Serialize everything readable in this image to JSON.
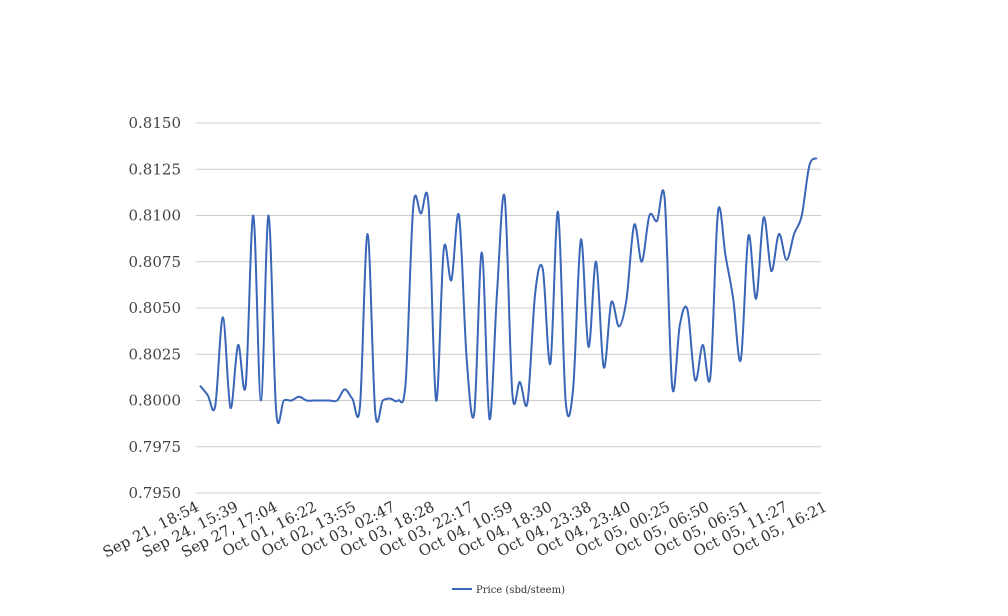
{
  "chart_data": {
    "type": "line",
    "ylim": [
      0.795,
      0.815
    ],
    "yticks": [
      "0.7950",
      "0.7975",
      "0.8000",
      "0.8025",
      "0.8050",
      "0.8075",
      "0.8100",
      "0.8125",
      "0.8150"
    ],
    "ytick_values": [
      0.795,
      0.7975,
      0.8,
      0.8025,
      0.805,
      0.8075,
      0.81,
      0.8125,
      0.815
    ],
    "xtick_labels": [
      "Sep 21, 18:54",
      "Sep 24, 15:39",
      "Sep 27, 17:04",
      "Oct 01, 16:22",
      "Oct 02, 13:55",
      "Oct 03, 02:47",
      "Oct 03, 18:28",
      "Oct 03, 22:17",
      "Oct 04, 10:59",
      "Oct 04, 18:30",
      "Oct 04, 23:38",
      "Oct 04, 23:40",
      "Oct 05, 00:25",
      "Oct 05, 06:50",
      "Oct 05, 06:51",
      "Oct 05, 11:27",
      "Oct 05, 16:21"
    ],
    "grid": true,
    "legend_position": "bottom",
    "colors": {
      "series": "#3a66b8",
      "grid": "#cccccc"
    },
    "series": [
      {
        "name": "Price (sbd/steem)",
        "values": [
          0.8008,
          0.8003,
          0.7997,
          0.8045,
          0.7996,
          0.803,
          0.8008,
          0.81,
          0.8,
          0.81,
          0.7994,
          0.8,
          0.8,
          0.8002,
          0.8,
          0.8,
          0.8,
          0.8,
          0.8,
          0.8006,
          0.8001,
          0.7997,
          0.809,
          0.7994,
          0.8,
          0.8001,
          0.8,
          0.801,
          0.8105,
          0.8101,
          0.8106,
          0.8,
          0.8082,
          0.8065,
          0.81,
          0.8023,
          0.7993,
          0.808,
          0.799,
          0.8059,
          0.811,
          0.8004,
          0.801,
          0.7999,
          0.8058,
          0.8071,
          0.802,
          0.8102,
          0.8,
          0.8007,
          0.8087,
          0.8029,
          0.8075,
          0.8018,
          0.8053,
          0.804,
          0.8055,
          0.8095,
          0.8075,
          0.81,
          0.8097,
          0.8109,
          0.8007,
          0.8041,
          0.8049,
          0.8011,
          0.803,
          0.8013,
          0.8102,
          0.8078,
          0.8055,
          0.8022,
          0.8089,
          0.8055,
          0.8099,
          0.807,
          0.809,
          0.8076,
          0.809,
          0.81,
          0.8127,
          0.8131
        ]
      }
    ]
  }
}
